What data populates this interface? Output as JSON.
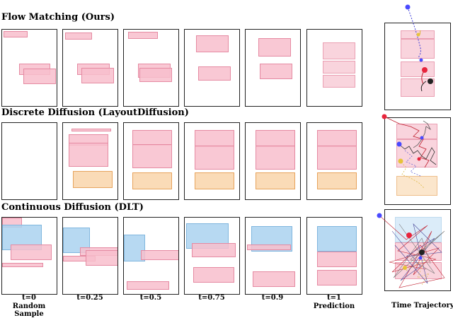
{
  "rows": [
    {
      "title": "Flow Matching (Ours)"
    },
    {
      "title": "Discrete Diffusion (LayoutDiffusion)"
    },
    {
      "title": "Continuous Diffusion (DLT)"
    }
  ],
  "timesteps": [
    "t=0",
    "t=0.25",
    "t=0.5",
    "t=0.75",
    "t=0.9",
    "t=1"
  ],
  "step_captions": {
    "first": "Random Sample",
    "last": "Prediction"
  },
  "trajectory_label": "Time Trajectory",
  "colors": {
    "pink": "#f8bece",
    "orange": "#fad7af",
    "blue": "#aad2f0",
    "traj_blue": "#4a4aff",
    "traj_red": "#e8243c",
    "traj_yellow": "#e7c33a",
    "traj_black": "#222222"
  }
}
